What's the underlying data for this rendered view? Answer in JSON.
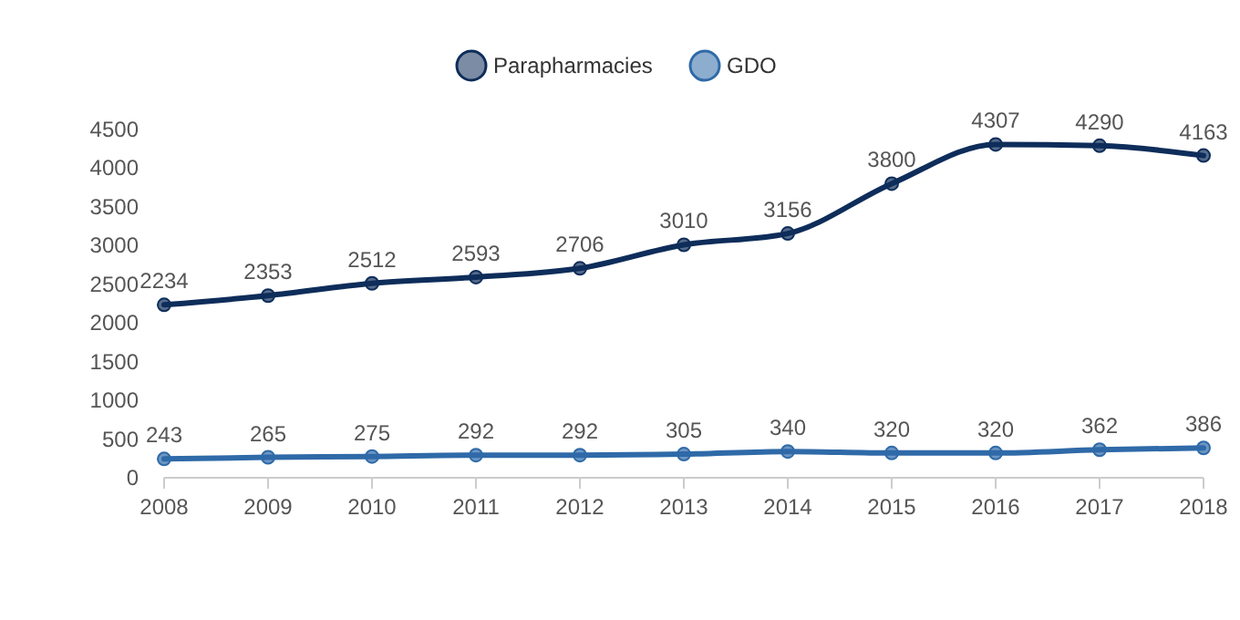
{
  "chart_data": {
    "type": "line",
    "x": [
      2008,
      2009,
      2010,
      2011,
      2012,
      2013,
      2014,
      2015,
      2016,
      2017,
      2018
    ],
    "xlim": [
      2008,
      2018
    ],
    "xticks": [
      2008,
      2009,
      2010,
      2011,
      2012,
      2013,
      2014,
      2015,
      2016,
      2017,
      2018
    ],
    "ylim": [
      0,
      4500
    ],
    "yticks": [
      0,
      500,
      1000,
      1500,
      2000,
      2500,
      3000,
      3500,
      4000,
      4500
    ],
    "series": [
      {
        "name": "Parapharmacies",
        "color": "#0e2d5a",
        "values": [
          2234,
          2353,
          2512,
          2593,
          2706,
          3010,
          3156,
          3800,
          4307,
          4290,
          4163
        ]
      },
      {
        "name": "GDO",
        "color": "#2f6aa8",
        "values": [
          243,
          265,
          275,
          292,
          292,
          305,
          340,
          320,
          320,
          362,
          386
        ]
      }
    ],
    "marker": "circle",
    "data_labels": true,
    "legend": "top",
    "grid": false
  }
}
